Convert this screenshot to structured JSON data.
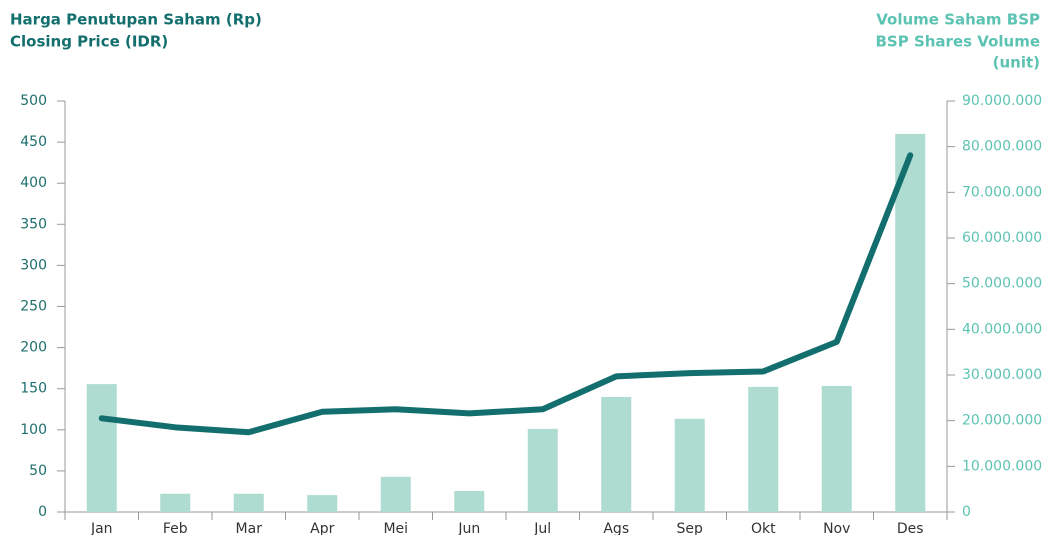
{
  "chart_data": {
    "type": "bar-line",
    "y_label": [
      "Harga Penutupan Saham (Rp)",
      "Closing Price (IDR)"
    ],
    "y2_label": [
      "Volume Saham BSP",
      "BSP Shares Volume",
      "(unit)"
    ],
    "categories": [
      "Jan",
      "Feb",
      "Mar",
      "Apr",
      "Mei",
      "Jun",
      "Jul",
      "Ags",
      "Sep",
      "Okt",
      "Nov",
      "Des"
    ],
    "series": [
      {
        "type": "bar",
        "axis": "y2",
        "color": "#aedcd0",
        "values": [
          28000000,
          4000000,
          4000000,
          3700000,
          7700000,
          4600000,
          18200000,
          25200000,
          20400000,
          27400000,
          27600000,
          82800000
        ]
      },
      {
        "type": "line",
        "axis": "y",
        "color": "#136e6e",
        "values": [
          114,
          103,
          97,
          122,
          125,
          120,
          125,
          165,
          169,
          171,
          207,
          434
        ]
      }
    ],
    "ylim": [
      0,
      500
    ],
    "yticks": [
      0,
      50,
      100,
      150,
      200,
      250,
      300,
      350,
      400,
      450,
      500
    ],
    "y2lim": [
      0,
      90000000
    ],
    "y2ticks": [
      0,
      {
        "value": 10000000,
        "label": "10.000.000"
      },
      {
        "value": 20000000,
        "label": "20.000.000"
      },
      {
        "value": 30000000,
        "label": "30.000.000"
      },
      {
        "value": 40000000,
        "label": "40.000.000"
      },
      {
        "value": 50000000,
        "label": "50.000.000"
      },
      {
        "value": 60000000,
        "label": "60.000.000"
      },
      {
        "value": 70000000,
        "label": "70.000.000"
      },
      {
        "value": 80000000,
        "label": "80.000.000"
      },
      {
        "value": 90000000,
        "label": "90.000.000"
      }
    ]
  }
}
